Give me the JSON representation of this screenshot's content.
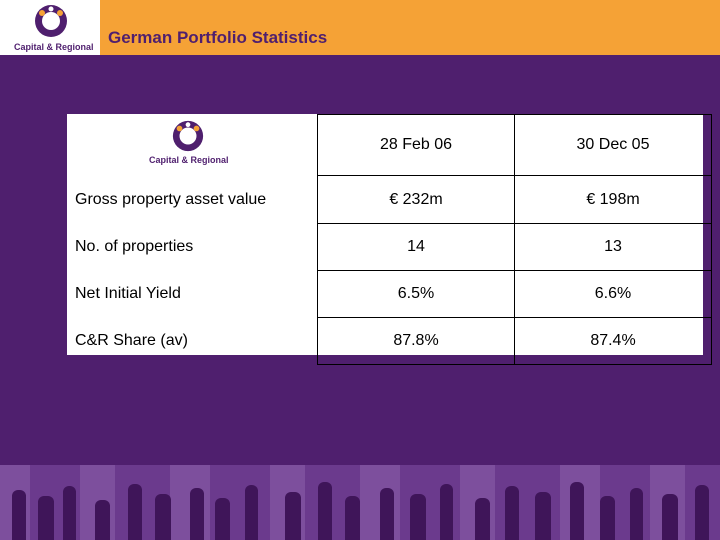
{
  "header": {
    "title": "German Portfolio Statistics",
    "logo_text": "Capital & Regional"
  },
  "table": {
    "logo_text": "Capital & Regional",
    "columns": [
      "28 Feb 06",
      "30 Dec 05"
    ],
    "rows": [
      {
        "label": "Gross property asset value",
        "values": [
          "€ 232m",
          "€ 198m"
        ]
      },
      {
        "label": "No. of properties",
        "values": [
          "14",
          "13"
        ]
      },
      {
        "label": "Net Initial Yield",
        "values": [
          "6.5%",
          "6.6%"
        ]
      },
      {
        "label": "C&R Share (av)",
        "values": [
          "87.8%",
          "87.4%"
        ]
      }
    ]
  },
  "colors": {
    "background": "#4f1f6e",
    "title_bar": "#f5a236",
    "title_text": "#4f1f6e"
  }
}
